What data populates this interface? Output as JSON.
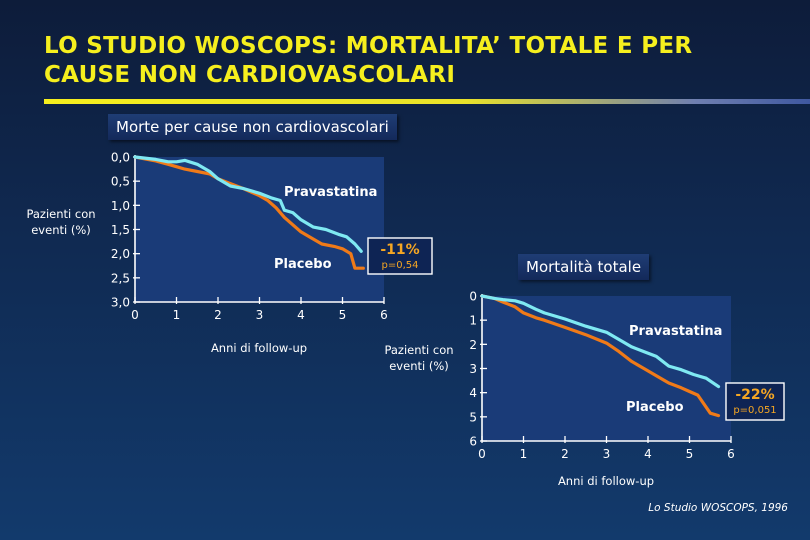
{
  "title": "LO STUDIO WOSCOPS: MORTALITA’ TOTALE E PER CAUSE NON CARDIOVASCOLARI",
  "source": "Lo Studio WOSCOPS, 1996",
  "colors": {
    "pravastatina": "#7fe9f2",
    "placebo": "#f07a18",
    "title": "#f6ef1e",
    "annotation_text": "#f5a623"
  },
  "chart_data": [
    {
      "type": "line",
      "title": "Morte per cause non cardiovascolari",
      "xlabel": "Anni di follow-up",
      "ylabel": "Pazienti con eventi (%)",
      "xlim": [
        0,
        6
      ],
      "ylim": [
        0,
        3
      ],
      "y_inverted": true,
      "x_ticks": [
        "0",
        "1",
        "2",
        "3",
        "4",
        "5",
        "6"
      ],
      "y_ticks": [
        "0,0",
        "0,5",
        "1,0",
        "1,5",
        "2,0",
        "2,5",
        "3,0"
      ],
      "series": [
        {
          "name": "Pravastatina",
          "x": [
            0,
            0.5,
            0.8,
            1.0,
            1.2,
            1.5,
            1.8,
            2.0,
            2.3,
            2.6,
            3.0,
            3.3,
            3.5,
            3.6,
            3.8,
            4.0,
            4.3,
            4.6,
            4.9,
            5.1,
            5.3,
            5.45
          ],
          "y": [
            0,
            0.05,
            0.1,
            0.1,
            0.07,
            0.15,
            0.3,
            0.45,
            0.6,
            0.65,
            0.75,
            0.85,
            0.9,
            1.1,
            1.15,
            1.3,
            1.45,
            1.5,
            1.6,
            1.65,
            1.8,
            1.95
          ]
        },
        {
          "name": "Placebo",
          "x": [
            0,
            0.5,
            0.8,
            1.0,
            1.2,
            1.5,
            1.8,
            2.0,
            2.3,
            2.6,
            3.0,
            3.2,
            3.4,
            3.6,
            3.8,
            4.0,
            4.2,
            4.5,
            4.8,
            5.0,
            5.2,
            5.3,
            5.5
          ],
          "y": [
            0,
            0.08,
            0.15,
            0.2,
            0.25,
            0.3,
            0.35,
            0.45,
            0.55,
            0.65,
            0.8,
            0.9,
            1.05,
            1.25,
            1.4,
            1.55,
            1.65,
            1.8,
            1.85,
            1.9,
            2.0,
            2.3,
            2.3
          ]
        }
      ],
      "annotation": {
        "value": "-11%",
        "p": "p=0,54"
      }
    },
    {
      "type": "line",
      "title": "Mortalità totale",
      "xlabel": "Anni di follow-up",
      "ylabel": "Pazienti con eventi (%)",
      "xlim": [
        0,
        6
      ],
      "ylim": [
        0,
        6
      ],
      "y_inverted": true,
      "x_ticks": [
        "0",
        "1",
        "2",
        "3",
        "4",
        "5",
        "6"
      ],
      "y_ticks": [
        "0",
        "1",
        "2",
        "3",
        "4",
        "5",
        "6"
      ],
      "series": [
        {
          "name": "Pravastatina",
          "x": [
            0,
            0.3,
            0.5,
            0.8,
            1.0,
            1.3,
            1.5,
            2.0,
            2.5,
            3.0,
            3.3,
            3.6,
            3.9,
            4.2,
            4.5,
            4.8,
            5.1,
            5.4,
            5.7
          ],
          "y": [
            0,
            0.1,
            0.15,
            0.2,
            0.3,
            0.55,
            0.7,
            0.95,
            1.25,
            1.5,
            1.8,
            2.1,
            2.3,
            2.5,
            2.9,
            3.05,
            3.25,
            3.4,
            3.75
          ]
        },
        {
          "name": "Placebo",
          "x": [
            0,
            0.3,
            0.5,
            0.8,
            1.0,
            1.3,
            1.5,
            2.0,
            2.5,
            3.0,
            3.3,
            3.6,
            3.9,
            4.2,
            4.5,
            4.8,
            5.0,
            5.2,
            5.5,
            5.7
          ],
          "y": [
            0,
            0.1,
            0.25,
            0.45,
            0.7,
            0.9,
            1.0,
            1.3,
            1.6,
            1.95,
            2.3,
            2.7,
            3.0,
            3.3,
            3.6,
            3.8,
            3.95,
            4.1,
            4.85,
            4.95
          ]
        }
      ],
      "annotation": {
        "value": "-22%",
        "p": "p=0,051"
      }
    }
  ]
}
